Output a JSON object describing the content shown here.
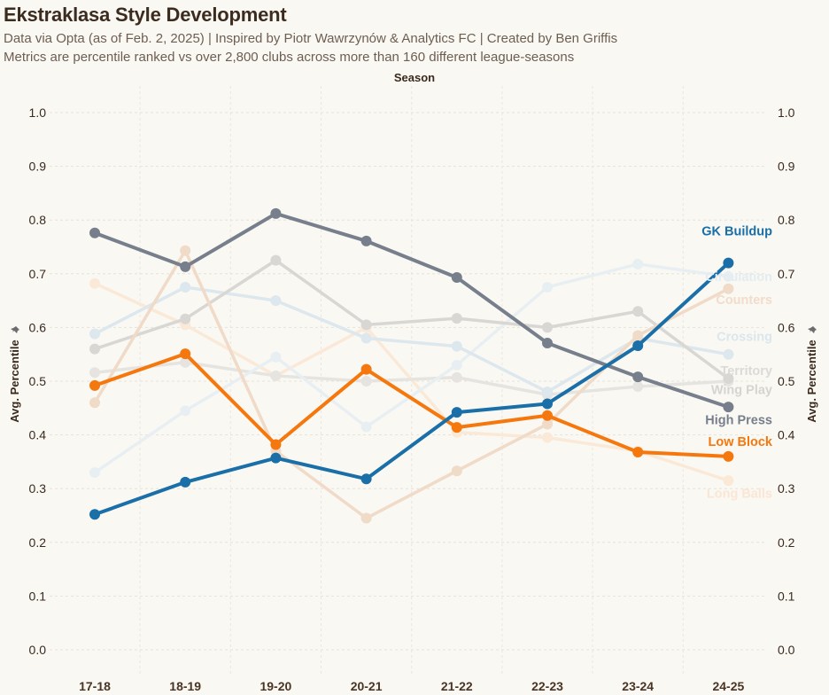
{
  "header": {
    "title": "Ekstraklasa Style Development",
    "subtitle1": "Data via Opta (as of Feb. 2, 2025) | Inspired by Piotr Wawrzynów & Analytics FC | Created by Ben Griffis",
    "subtitle2": "Metrics are percentile ranked vs over 2,800 clubs across more than 160 different league-seasons",
    "column_header": "Season"
  },
  "chart_data": {
    "type": "line",
    "title": "Ekstraklasa Style Development",
    "xlabel": "Season",
    "ylabel": "Avg. Percentile",
    "ylabel_icon": "pin-icon",
    "ylim": [
      0,
      1
    ],
    "yticks": [
      "0.0",
      "0.1",
      "0.2",
      "0.3",
      "0.4",
      "0.5",
      "0.6",
      "0.7",
      "0.8",
      "0.9",
      "1.0"
    ],
    "grid": true,
    "dual_y_axis": true,
    "categories": [
      "17-18",
      "18-19",
      "19-20",
      "20-21",
      "21-22",
      "22-23",
      "23-24",
      "24-25"
    ],
    "series": [
      {
        "name": "Long Balls",
        "color": "#fbe9d8",
        "emphasis": false,
        "values": [
          0.682,
          0.605,
          0.51,
          0.6,
          0.405,
          0.395,
          0.37,
          0.315
        ]
      },
      {
        "name": "Wing Play",
        "color": "#e6e4e0",
        "emphasis": false,
        "values": [
          0.516,
          0.535,
          0.51,
          0.5,
          0.507,
          0.475,
          0.49,
          0.5
        ]
      },
      {
        "name": "Circulation",
        "color": "#e8eff3",
        "emphasis": false,
        "values": [
          0.33,
          0.445,
          0.545,
          0.415,
          0.53,
          0.675,
          0.718,
          0.695
        ]
      },
      {
        "name": "Crossing",
        "color": "#dce7ee",
        "emphasis": false,
        "values": [
          0.588,
          0.675,
          0.65,
          0.58,
          0.565,
          0.48,
          0.58,
          0.55
        ]
      },
      {
        "name": "Territory",
        "color": "#d9d7d3",
        "emphasis": false,
        "values": [
          0.56,
          0.616,
          0.725,
          0.605,
          0.617,
          0.6,
          0.63,
          0.505
        ]
      },
      {
        "name": "Counters",
        "color": "#f0dac8",
        "emphasis": false,
        "values": [
          0.46,
          0.743,
          0.37,
          0.245,
          0.333,
          0.42,
          0.585,
          0.672
        ]
      },
      {
        "name": "High Press",
        "color": "#767f8b",
        "emphasis": true,
        "values": [
          0.776,
          0.713,
          0.812,
          0.761,
          0.693,
          0.571,
          0.508,
          0.452
        ]
      },
      {
        "name": "Low Block",
        "color": "#f5780e",
        "emphasis": true,
        "values": [
          0.492,
          0.551,
          0.382,
          0.522,
          0.414,
          0.436,
          0.368,
          0.36
        ]
      },
      {
        "name": "GK Buildup",
        "color": "#1a6fa8",
        "emphasis": true,
        "values": [
          0.252,
          0.312,
          0.357,
          0.318,
          0.442,
          0.458,
          0.566,
          0.72
        ]
      }
    ],
    "end_labels": [
      {
        "series": "GK Buildup",
        "text": "GK Buildup",
        "color": "#1a6fa8",
        "at_value": 0.78
      },
      {
        "series": "Circulation",
        "text": "Circulation",
        "color": "#e3ecf1",
        "at_value": 0.695
      },
      {
        "series": "Counters",
        "text": "Counters",
        "color": "#f2dcca",
        "at_value": 0.652
      },
      {
        "series": "Crossing",
        "text": "Crossing",
        "color": "#dbe6ed",
        "at_value": 0.583
      },
      {
        "series": "Territory",
        "text": "Territory",
        "color": "#dcdad6",
        "at_value": 0.52
      },
      {
        "series": "Wing Play",
        "text": "Wing Play",
        "color": "#d6d4d0",
        "at_value": 0.484
      },
      {
        "series": "High Press",
        "text": "High Press",
        "color": "#767f8b",
        "at_value": 0.428
      },
      {
        "series": "Low Block",
        "text": "Low Block",
        "color": "#f5780e",
        "at_value": 0.388
      },
      {
        "series": "Long Balls",
        "text": "Long Balls",
        "color": "#fbe6d4",
        "at_value": 0.291
      }
    ]
  }
}
